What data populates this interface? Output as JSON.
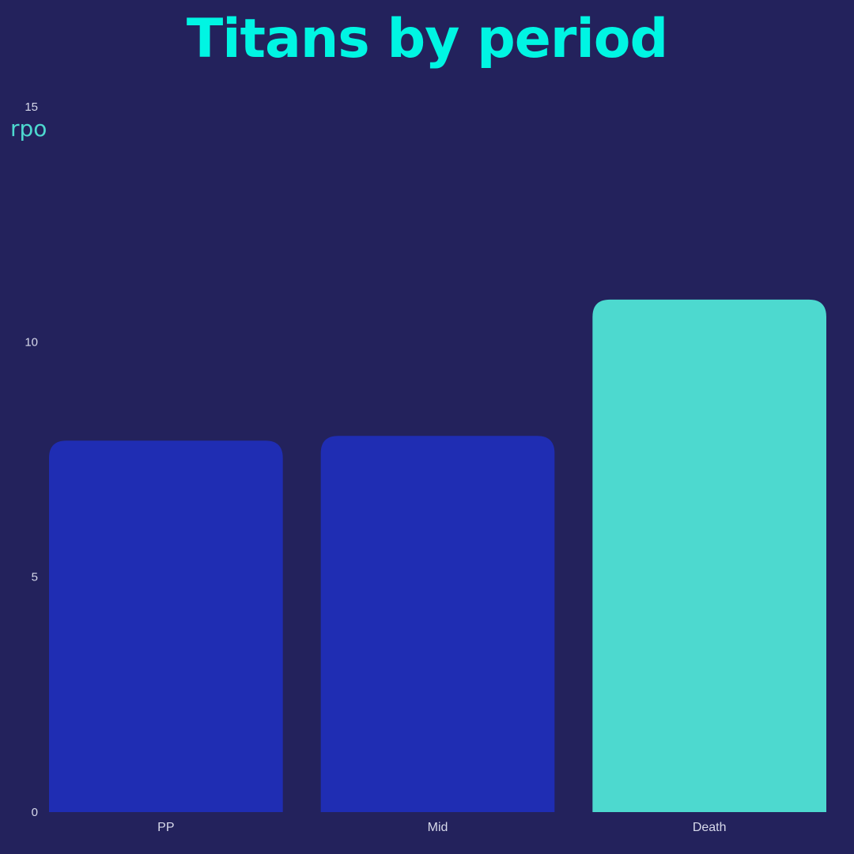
{
  "title": "Titans by period",
  "chart_data": {
    "type": "bar",
    "title": "Titans by period",
    "xlabel": "",
    "ylabel": "rpo",
    "categories": [
      "PP",
      "Mid",
      "Death"
    ],
    "values": [
      7.9,
      8.0,
      10.9
    ],
    "ylim": [
      0,
      15
    ],
    "yticks": [
      "0",
      "5",
      "10",
      "15"
    ],
    "grid": false,
    "legend": "none",
    "colors": [
      "#1f2db3",
      "#1f2db3",
      "#4dd9cf"
    ]
  },
  "colors": {
    "background": "#23225c",
    "title": "#00f5e3",
    "axis_label": "#4dd9cf",
    "tick_text": "#d7d9ea"
  }
}
